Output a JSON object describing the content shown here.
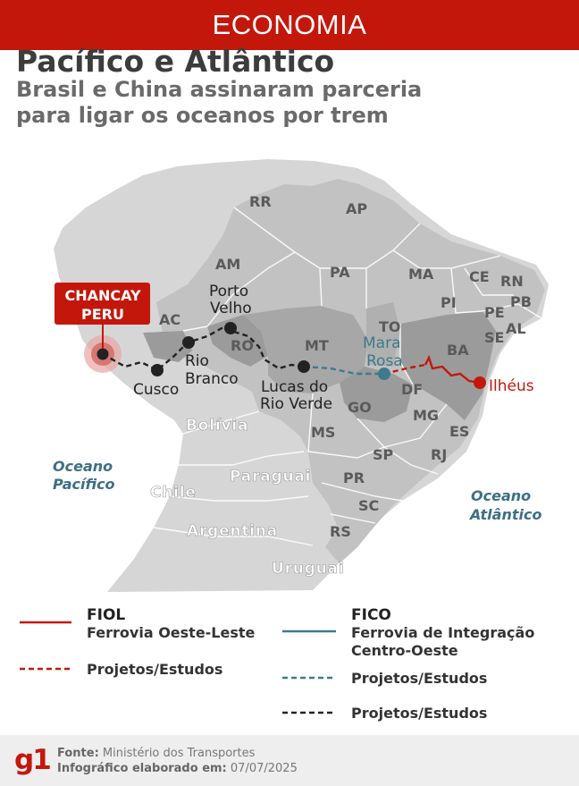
{
  "header": {
    "section": "ECONOMIA"
  },
  "title": "Pacífico e Atlântico",
  "subtitle": [
    "Brasil e China assinaram parceria",
    "para ligar os oceanos por trem"
  ],
  "colors": {
    "brand_red": "#c4170c",
    "fico_blue": "#3d7a8c",
    "dashed_black": "#222222",
    "land": "#d4d4d4",
    "highlight": "#9a9a9a"
  },
  "map": {
    "states": [
      "RR",
      "AP",
      "AM",
      "PA",
      "MA",
      "CE",
      "RN",
      "PB",
      "PI",
      "PE",
      "AL",
      "SE",
      "AC",
      "RO",
      "TO",
      "BA",
      "MT",
      "DF",
      "GO",
      "MG",
      "ES",
      "MS",
      "SP",
      "RJ",
      "PR",
      "SC",
      "RS"
    ],
    "countries": [
      "Bolívia",
      "Paraguai",
      "Chile",
      "Argentina",
      "Uruguai"
    ],
    "oceans": {
      "pacific": [
        "Oceano",
        "Pacífico"
      ],
      "atlantic": [
        "Oceano",
        "Atlântico"
      ]
    },
    "origin": {
      "name": "CHANCAY",
      "country": "PERU"
    },
    "cities": [
      {
        "name": "Cusco"
      },
      {
        "name": "Rio Branco"
      },
      {
        "name": "Porto Velho"
      },
      {
        "name": "Lucas do Rio Verde"
      },
      {
        "name": "Mara Rosa"
      },
      {
        "name": "Ilhéus"
      }
    ]
  },
  "legend": {
    "fiol": {
      "title": "FIOL",
      "sub": "Ferrovia Oeste-Leste",
      "projects": "Projetos/Estudos"
    },
    "fico": {
      "title": "FICO",
      "sub1": "Ferrovia de Integração",
      "sub2": "Centro-Oeste",
      "projects": "Projetos/Estudos"
    },
    "other": {
      "projects": "Projetos/Estudos"
    }
  },
  "footer": {
    "logo": "g1",
    "source_label": "Fonte:",
    "source": "Ministério dos Transportes",
    "date_label": "Infográfico elaborado em:",
    "date": "07/07/2025"
  }
}
